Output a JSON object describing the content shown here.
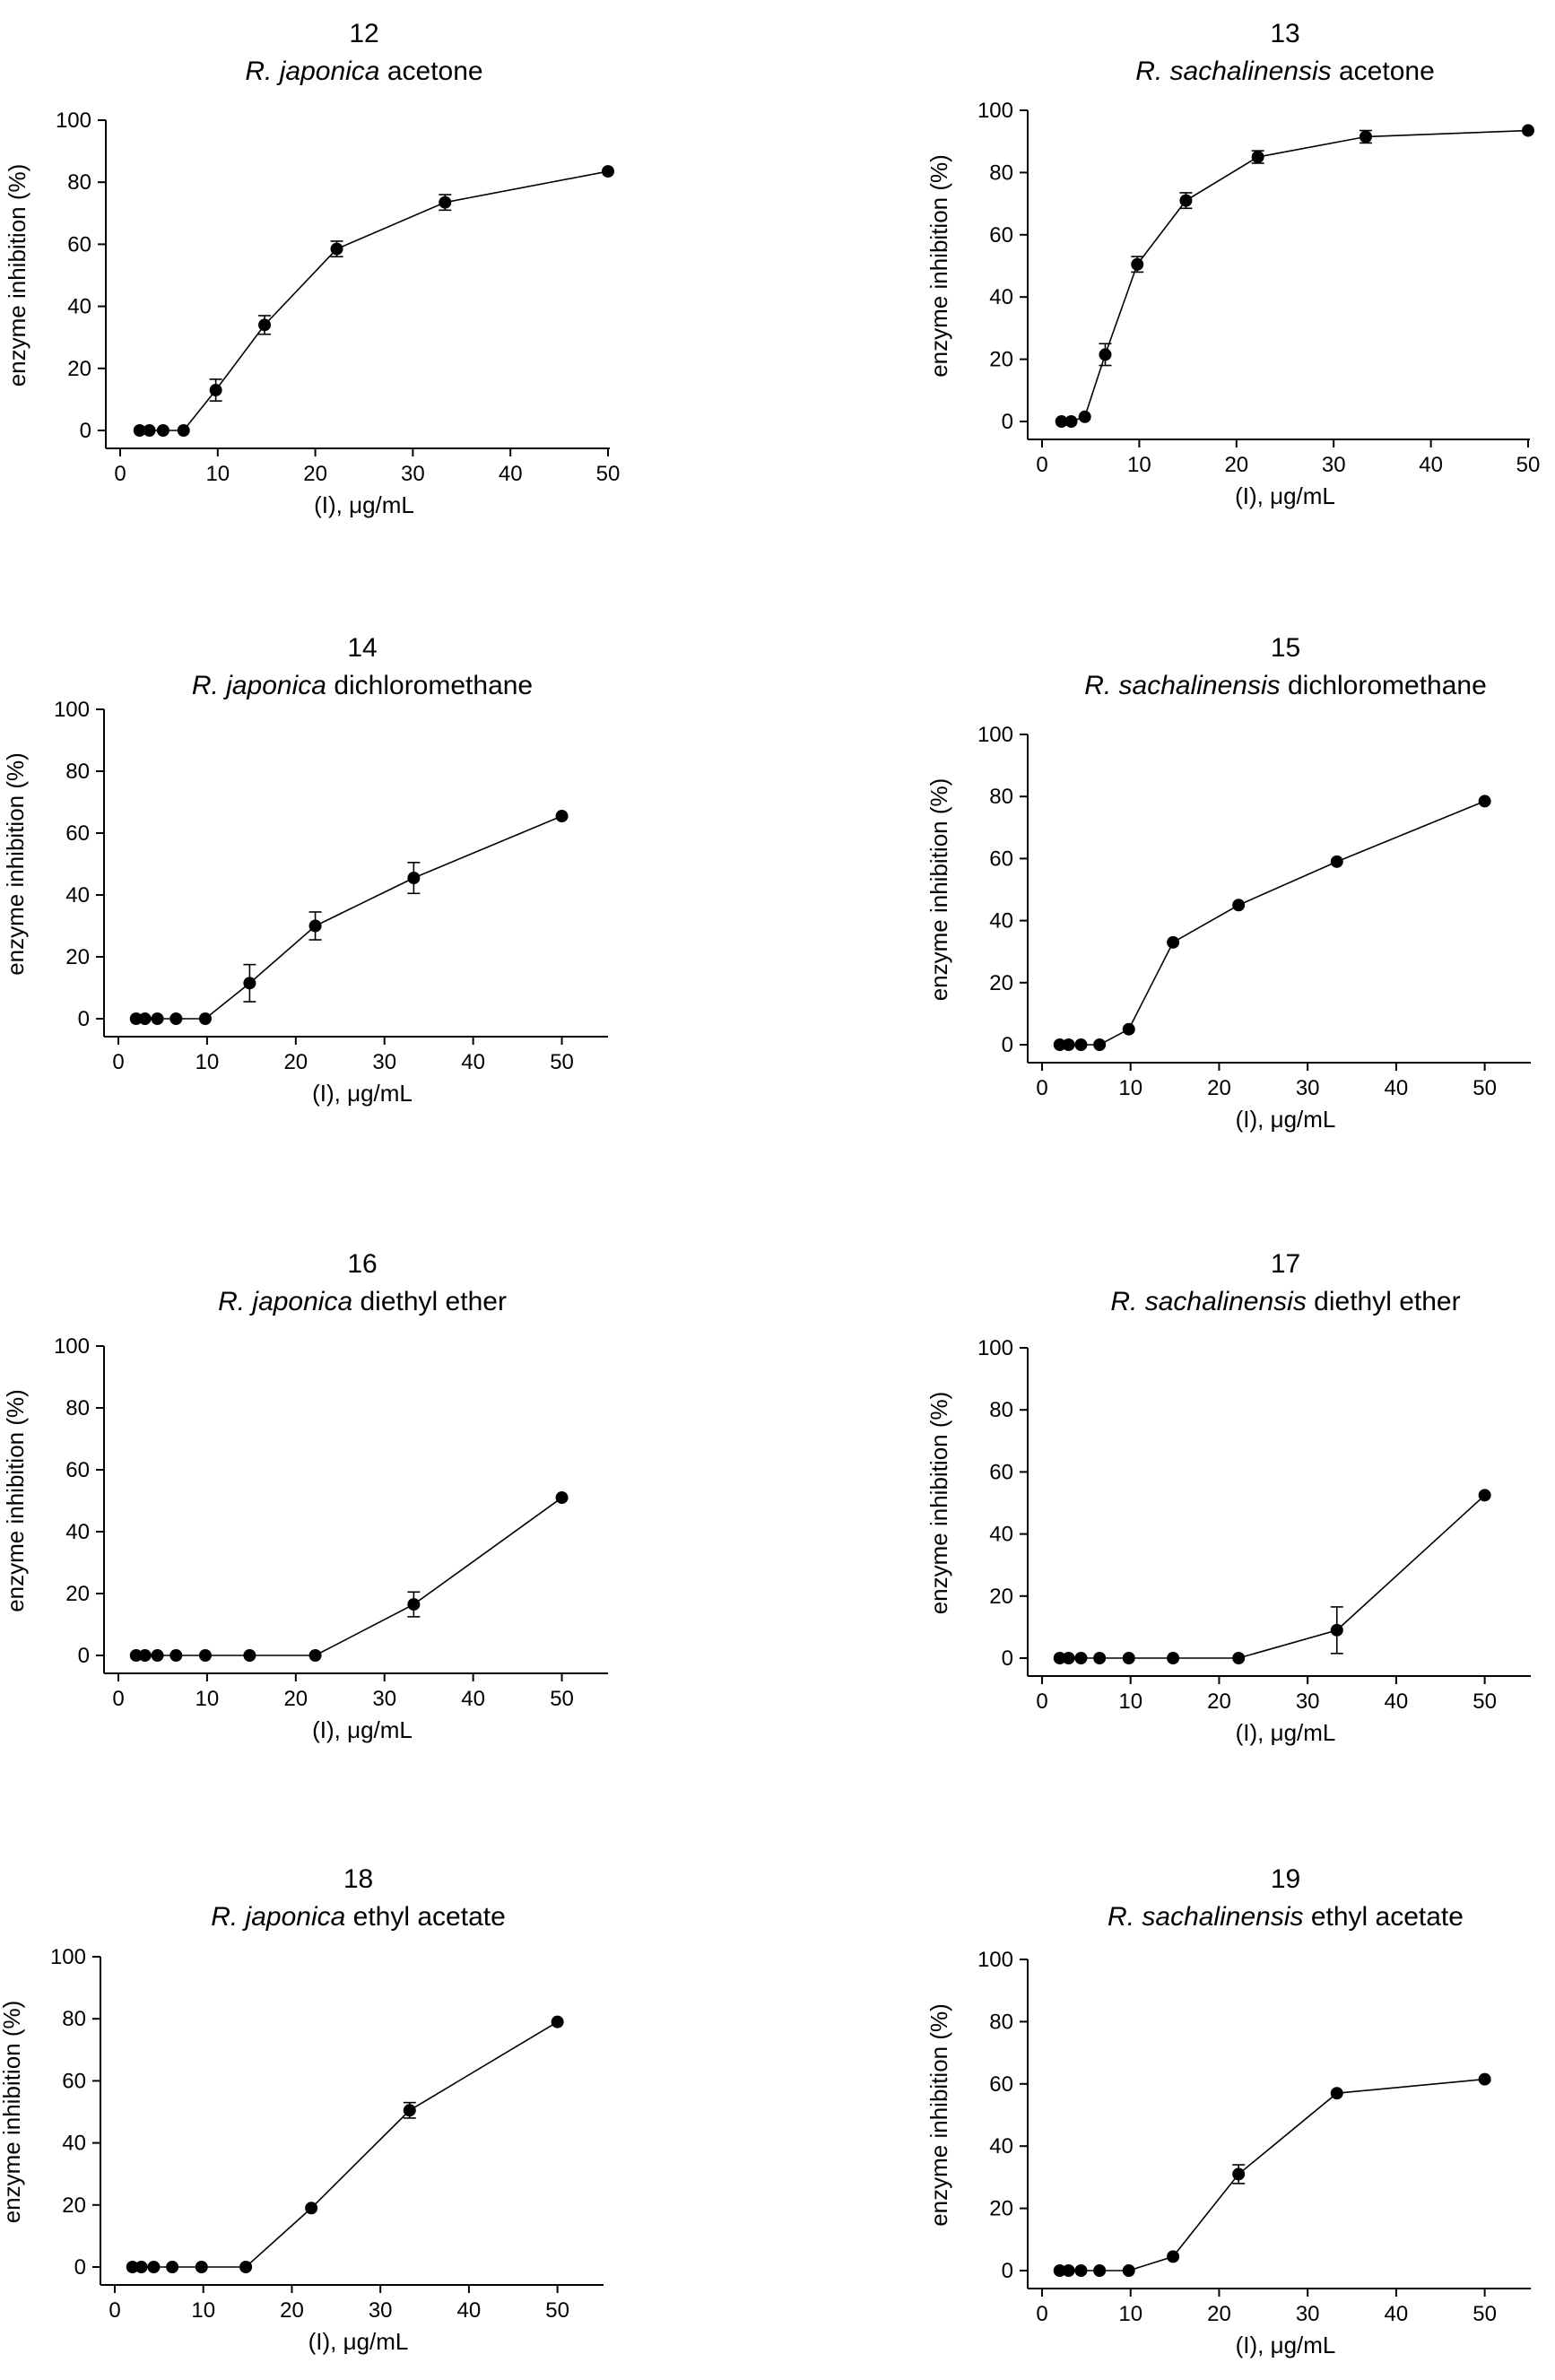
{
  "chart_data": [
    {
      "type": "line",
      "panel_number": "12",
      "species": "R. japonica",
      "solvent": "acetone",
      "xlabel": "(I), μg/mL",
      "ylabel": "enzyme inhibition  (%)",
      "xlim": [
        0,
        50
      ],
      "ylim": [
        0,
        100
      ],
      "xticks": [
        0,
        10,
        20,
        30,
        40,
        50
      ],
      "yticks": [
        0,
        20,
        40,
        60,
        80,
        100
      ],
      "series": [
        {
          "name": "R. japonica acetone",
          "x": [
            2.0,
            3.0,
            4.4,
            6.5,
            9.8,
            14.8,
            22.2,
            33.3,
            50.0
          ],
          "y": [
            0,
            0,
            0,
            0,
            13,
            34,
            58.5,
            73.5,
            83.5
          ],
          "err": [
            0,
            0,
            0,
            0,
            3.5,
            3,
            2.5,
            2.5,
            0
          ]
        }
      ]
    },
    {
      "type": "line",
      "panel_number": "13",
      "species": "R. sachalinensis",
      "solvent": "acetone",
      "xlabel": "(I), μg/mL",
      "ylabel": "enzyme inhibition  (%)",
      "xlim": [
        0,
        50
      ],
      "ylim": [
        0,
        100
      ],
      "xticks": [
        0,
        10,
        20,
        30,
        40,
        50
      ],
      "yticks": [
        0,
        20,
        40,
        60,
        80,
        100
      ],
      "series": [
        {
          "name": "R. sachalinensis acetone",
          "x": [
            2.0,
            3.0,
            4.4,
            6.5,
            9.8,
            14.8,
            22.2,
            33.3,
            50.0
          ],
          "y": [
            0,
            0,
            1.5,
            21.5,
            50.5,
            71,
            85,
            91.5,
            93.5
          ],
          "err": [
            0,
            0,
            0,
            3.5,
            2.5,
            2.5,
            2,
            2,
            0
          ]
        }
      ]
    },
    {
      "type": "line",
      "panel_number": "14",
      "species": "R. japonica",
      "solvent": "dichloromethane",
      "xlabel": "(I), μg/mL",
      "ylabel": "enzyme inhibition (%)",
      "xlim": [
        0,
        55
      ],
      "ylim": [
        0,
        100
      ],
      "xticks": [
        0,
        10,
        20,
        30,
        40,
        50
      ],
      "yticks": [
        0,
        20,
        40,
        60,
        80,
        100
      ],
      "series": [
        {
          "name": "R. japonica dichloromethane",
          "x": [
            2.0,
            3.0,
            4.4,
            6.5,
            9.8,
            14.8,
            22.2,
            33.3,
            50.0
          ],
          "y": [
            0,
            0,
            0,
            0,
            0,
            11.5,
            30,
            45.5,
            65.5
          ],
          "err": [
            0,
            0,
            0,
            0,
            0,
            6,
            4.5,
            5,
            0
          ]
        }
      ]
    },
    {
      "type": "line",
      "panel_number": "15",
      "species": "R. sachalinensis",
      "solvent": "dichloromethane",
      "xlabel": "(I), μg/mL",
      "ylabel": "enzyme inhibition (%)",
      "xlim": [
        0,
        55
      ],
      "ylim": [
        0,
        100
      ],
      "xticks": [
        0,
        10,
        20,
        30,
        40,
        50
      ],
      "yticks": [
        0,
        20,
        40,
        60,
        80,
        100
      ],
      "series": [
        {
          "name": "R. sachalinensis dichloromethane",
          "x": [
            2.0,
            3.0,
            4.4,
            6.5,
            9.8,
            14.8,
            22.2,
            33.3,
            50.0
          ],
          "y": [
            0,
            0,
            0,
            0,
            5,
            33,
            45,
            59,
            78.5
          ],
          "err": [
            0,
            0,
            0,
            0,
            0,
            0,
            0,
            0,
            0
          ]
        }
      ]
    },
    {
      "type": "line",
      "panel_number": "16",
      "species": "R. japonica",
      "solvent": "diethyl ether",
      "xlabel": "(I), μg/mL",
      "ylabel": "enzyme inhibition (%)",
      "xlim": [
        0,
        55
      ],
      "ylim": [
        0,
        100
      ],
      "xticks": [
        0,
        10,
        20,
        30,
        40,
        50
      ],
      "yticks": [
        0,
        20,
        40,
        60,
        80,
        100
      ],
      "series": [
        {
          "name": "R. japonica diethyl ether",
          "x": [
            2.0,
            3.0,
            4.4,
            6.5,
            9.8,
            14.8,
            22.2,
            33.3,
            50.0
          ],
          "y": [
            0,
            0,
            0,
            0,
            0,
            0,
            0,
            16.5,
            51
          ],
          "err": [
            0,
            0,
            0,
            0,
            0,
            0,
            0,
            4,
            0
          ]
        }
      ]
    },
    {
      "type": "line",
      "panel_number": "17",
      "species": "R. sachalinensis",
      "solvent": "diethyl ether",
      "xlabel": "(I), μg/mL",
      "ylabel": "enzyme inhibition (%)",
      "xlim": [
        0,
        55
      ],
      "ylim": [
        0,
        100
      ],
      "xticks": [
        0,
        10,
        20,
        30,
        40,
        50
      ],
      "yticks": [
        0,
        20,
        40,
        60,
        80,
        100
      ],
      "series": [
        {
          "name": "R. sachalinensis diethyl ether",
          "x": [
            2.0,
            3.0,
            4.4,
            6.5,
            9.8,
            14.8,
            22.2,
            33.3,
            50.0
          ],
          "y": [
            0,
            0,
            0,
            0,
            0,
            0,
            0,
            9,
            52.5
          ],
          "err": [
            0,
            0,
            0,
            0,
            0,
            0,
            0,
            7.5,
            0
          ]
        }
      ]
    },
    {
      "type": "line",
      "panel_number": "18",
      "species": "R. japonica",
      "solvent": "ethyl acetate",
      "xlabel": "(I), μg/mL",
      "ylabel": "enzyme inhibition (%)",
      "xlim": [
        0,
        55
      ],
      "ylim": [
        0,
        100
      ],
      "xticks": [
        0,
        10,
        20,
        30,
        40,
        50
      ],
      "yticks": [
        0,
        20,
        40,
        60,
        80,
        100
      ],
      "series": [
        {
          "name": "R. japonica ethyl acetate",
          "x": [
            2.0,
            3.0,
            4.4,
            6.5,
            9.8,
            14.8,
            22.2,
            33.3,
            50.0
          ],
          "y": [
            0,
            0,
            0,
            0,
            0,
            0,
            19,
            50.5,
            79
          ],
          "err": [
            0,
            0,
            0,
            0,
            0,
            0,
            0,
            2.5,
            0
          ]
        }
      ]
    },
    {
      "type": "line",
      "panel_number": "19",
      "species": "R. sachalinensis",
      "solvent": "ethyl acetate",
      "xlabel": "(I), μg/mL",
      "ylabel": "enzyme inhibition (%)",
      "xlim": [
        0,
        55
      ],
      "ylim": [
        0,
        100
      ],
      "xticks": [
        0,
        10,
        20,
        30,
        40,
        50
      ],
      "yticks": [
        0,
        20,
        40,
        60,
        80,
        100
      ],
      "series": [
        {
          "name": "R. sachalinensis ethyl acetate",
          "x": [
            2.0,
            3.0,
            4.4,
            6.5,
            9.8,
            14.8,
            22.2,
            33.3,
            50.0
          ],
          "y": [
            0,
            0,
            0,
            0,
            0,
            4.5,
            31,
            57,
            61.5
          ],
          "err": [
            0,
            0,
            0,
            0,
            0,
            0,
            3,
            0,
            0
          ]
        }
      ]
    }
  ]
}
